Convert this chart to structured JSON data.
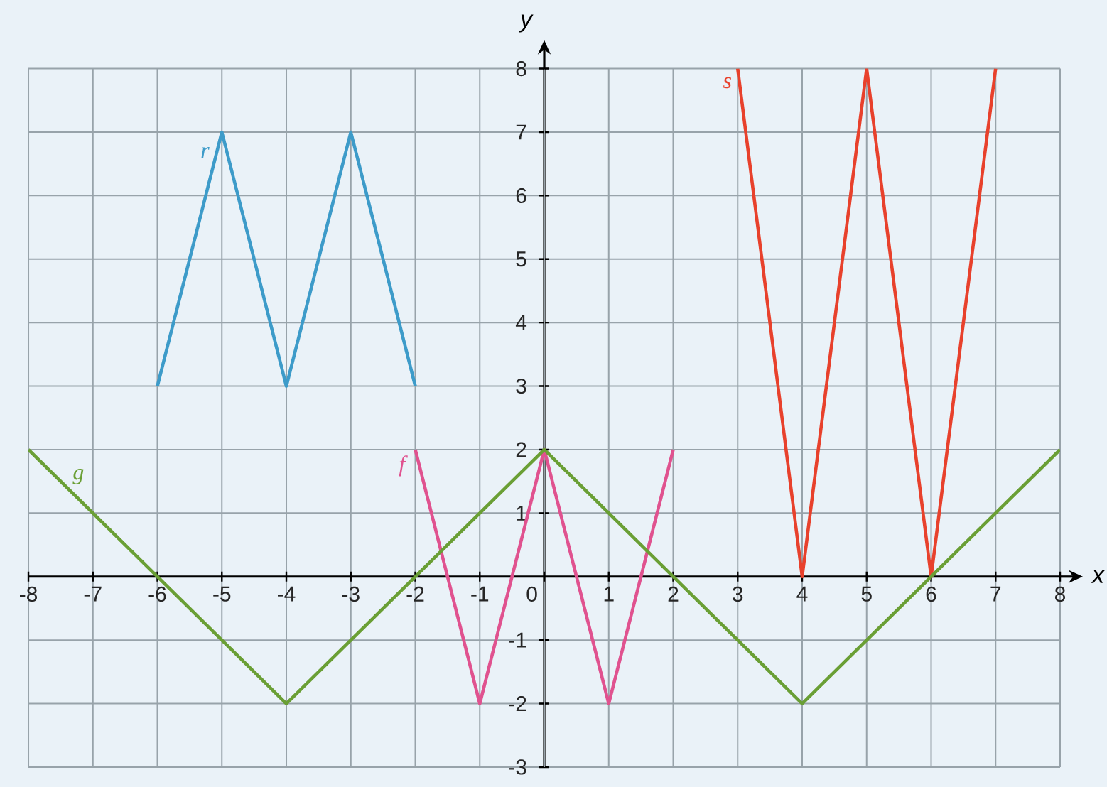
{
  "chart_data": {
    "type": "line",
    "xlabel": "x",
    "ylabel": "y",
    "xlim": [
      -8,
      8
    ],
    "ylim": [
      -3,
      8
    ],
    "xticks": [
      -8,
      -7,
      -6,
      -5,
      -4,
      -3,
      -2,
      -1,
      0,
      1,
      2,
      3,
      4,
      5,
      6,
      7,
      8
    ],
    "yticks": [
      -3,
      -2,
      -1,
      {
        "value": 0,
        "label": null
      },
      1,
      2,
      3,
      4,
      5,
      6,
      7,
      8
    ],
    "grid": true,
    "series": [
      {
        "name": "r",
        "color": "#3d9bc9",
        "x": [
          -6,
          -5,
          -4,
          -3,
          -2
        ],
        "values": [
          3,
          7,
          3,
          7,
          3
        ]
      },
      {
        "name": "s",
        "color": "#e8412c",
        "x": [
          3,
          4,
          5,
          6,
          7
        ],
        "values": [
          8,
          0,
          8,
          0,
          8
        ]
      },
      {
        "name": "f",
        "color": "#e0528f",
        "x": [
          -2,
          -1,
          0,
          1,
          2
        ],
        "values": [
          2,
          -2,
          2,
          -2,
          2
        ]
      },
      {
        "name": "g",
        "color": "#6a9f35",
        "x": [
          -8,
          -4,
          0,
          4,
          8
        ],
        "values": [
          2,
          -2,
          2,
          -2,
          2
        ]
      }
    ]
  }
}
